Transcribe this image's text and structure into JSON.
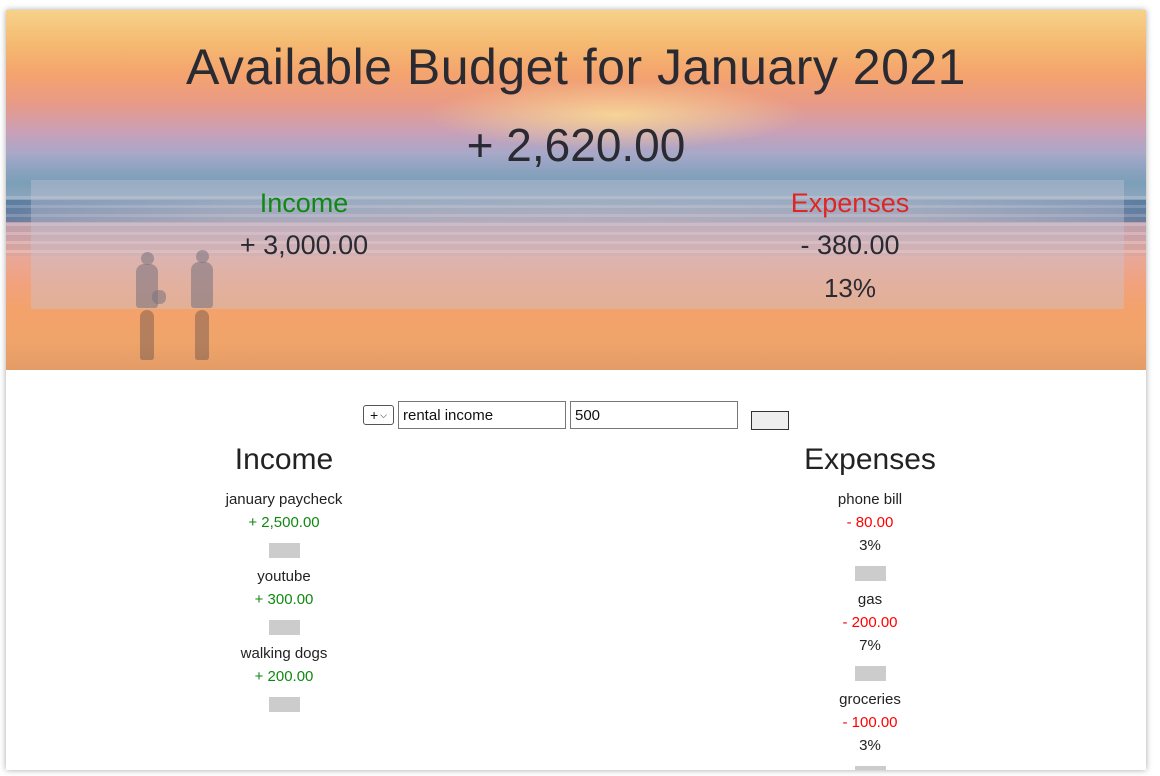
{
  "header": {
    "title": "Available Budget for January 2021",
    "total": "+ 2,620.00"
  },
  "summary": {
    "income_label": "Income",
    "income_value": "+ 3,000.00",
    "expenses_label": "Expenses",
    "expenses_value": "- 380.00",
    "expenses_percent": "13%"
  },
  "form": {
    "type_value": "+",
    "description_value": "rental income",
    "amount_value": "500"
  },
  "income": {
    "title": "Income",
    "items": [
      {
        "description": "january paycheck",
        "value": "+ 2,500.00"
      },
      {
        "description": "youtube",
        "value": "+ 300.00"
      },
      {
        "description": "walking dogs",
        "value": "+ 200.00"
      }
    ]
  },
  "expenses": {
    "title": "Expenses",
    "items": [
      {
        "description": "phone bill",
        "value": "- 80.00",
        "percent": "3%"
      },
      {
        "description": "gas",
        "value": "- 200.00",
        "percent": "7%"
      },
      {
        "description": "groceries",
        "value": "- 100.00",
        "percent": "3%"
      }
    ]
  },
  "colors": {
    "income": "#118811",
    "expenses_header": "#e02525",
    "expenses_value": "#ff0000",
    "delete_button": "#cccccc"
  }
}
